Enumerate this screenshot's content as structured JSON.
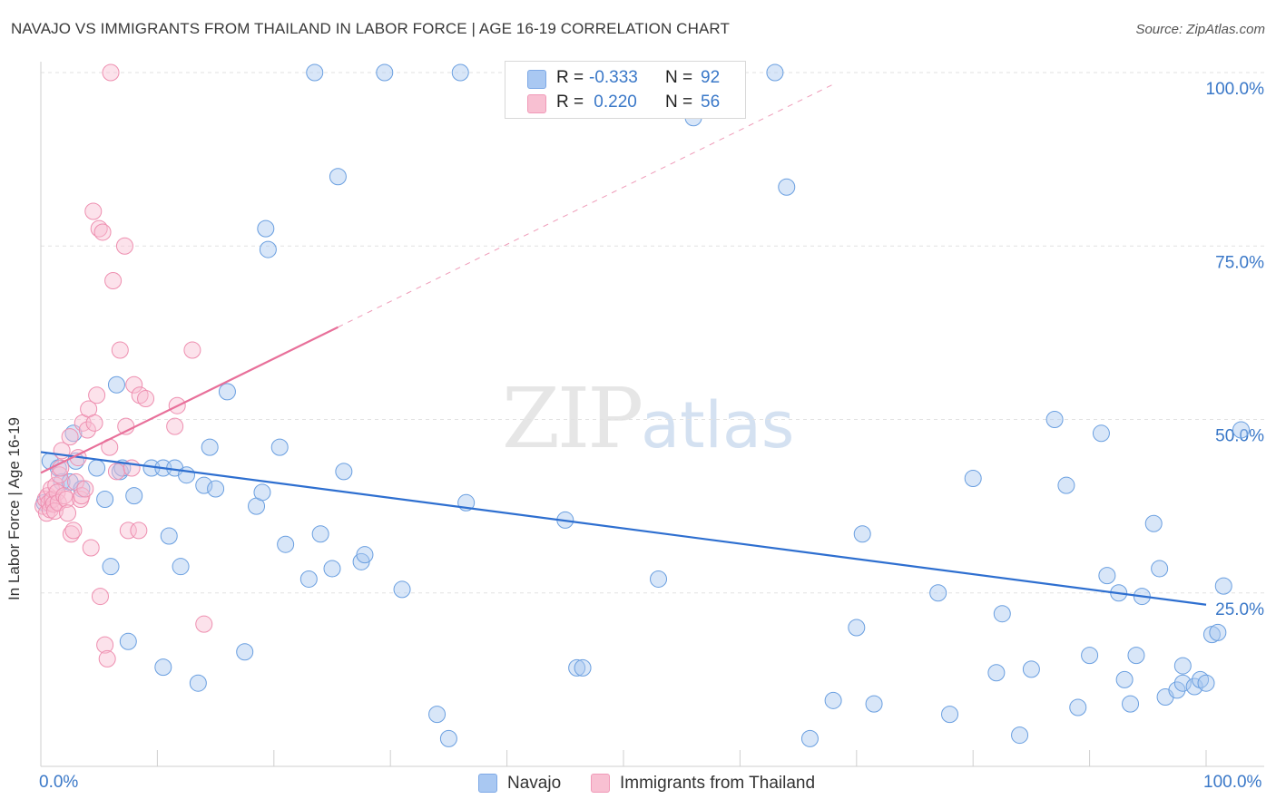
{
  "title": "NAVAJO VS IMMIGRANTS FROM THAILAND IN LABOR FORCE | AGE 16-19 CORRELATION CHART",
  "source": "Source: ZipAtlas.com",
  "watermark": {
    "zip": "ZIP",
    "atlas": "atlas"
  },
  "colors": {
    "blue": "#6a9fe0",
    "blue_fill": "rgba(168,199,240,0.45)",
    "blue_line": "#2e6fd0",
    "pink": "#ee8fb0",
    "pink_fill": "rgba(248,190,210,0.45)",
    "pink_line": "#e8709a",
    "axis_text": "#3a78c8"
  },
  "legend_top": [
    {
      "r_label": "R =",
      "r_value": "-0.333",
      "n_label": "N =",
      "n_value": "92",
      "swatch_color": "#a9c8f2",
      "swatch_border": "#7ea9e6"
    },
    {
      "r_label": "R =",
      "r_value": " 0.220",
      "n_label": "N =",
      "n_value": "56",
      "swatch_color": "#f8c0d2",
      "swatch_border": "#f09ab8"
    }
  ],
  "legend_bottom": [
    {
      "label": "Navajo",
      "swatch_color": "#a9c8f2",
      "swatch_border": "#7ea9e6"
    },
    {
      "label": "Immigrants from Thailand",
      "swatch_color": "#f8c0d2",
      "swatch_border": "#f09ab8"
    }
  ],
  "chart_data": {
    "type": "scatter",
    "title": "NAVAJO VS IMMIGRANTS FROM THAILAND IN LABOR FORCE | AGE 16-19 CORRELATION CHART",
    "xlabel": "",
    "ylabel": "In Labor Force | Age 16-19",
    "xlim": [
      0,
      100
    ],
    "ylim": [
      0,
      100
    ],
    "x_tick_labels": [
      "0.0%",
      "100.0%"
    ],
    "y_ticks": [
      25,
      50,
      75,
      100
    ],
    "y_tick_labels": [
      "25.0%",
      "50.0%",
      "75.0%",
      "100.0%"
    ],
    "grid": true,
    "series": [
      {
        "name": "Navajo",
        "r": -0.333,
        "n": 92,
        "trend": {
          "x": [
            0,
            100
          ],
          "y": [
            45.3,
            23.3
          ],
          "dashed_x_max": null
        },
        "points": [
          [
            0.3,
            38
          ],
          [
            0.8,
            44
          ],
          [
            1.5,
            43
          ],
          [
            1.8,
            41
          ],
          [
            2.5,
            41
          ],
          [
            2.8,
            48
          ],
          [
            3.0,
            44
          ],
          [
            3.5,
            40
          ],
          [
            4.8,
            43
          ],
          [
            5.5,
            38.5
          ],
          [
            6.0,
            28.8
          ],
          [
            6.5,
            55
          ],
          [
            6.8,
            42.5
          ],
          [
            7.0,
            43
          ],
          [
            7.5,
            18
          ],
          [
            8.0,
            39
          ],
          [
            9.5,
            43
          ],
          [
            10.5,
            43
          ],
          [
            10.5,
            14.3
          ],
          [
            11.0,
            33.2
          ],
          [
            11.5,
            43
          ],
          [
            12.0,
            28.8
          ],
          [
            12.5,
            42
          ],
          [
            13.5,
            12
          ],
          [
            14,
            40.5
          ],
          [
            14.5,
            46
          ],
          [
            15,
            40
          ],
          [
            16,
            54
          ],
          [
            17.5,
            16.5
          ],
          [
            18.5,
            37.5
          ],
          [
            19,
            39.5
          ],
          [
            19.3,
            77.5
          ],
          [
            19.5,
            74.5
          ],
          [
            20.5,
            46
          ],
          [
            21,
            32
          ],
          [
            23,
            27
          ],
          [
            23.5,
            100
          ],
          [
            24,
            33.5
          ],
          [
            25,
            28.5
          ],
          [
            25.5,
            85
          ],
          [
            26,
            42.5
          ],
          [
            27.5,
            29.5
          ],
          [
            27.8,
            30.5
          ],
          [
            29.5,
            100
          ],
          [
            31,
            25.5
          ],
          [
            34,
            7.5
          ],
          [
            35,
            4
          ],
          [
            36,
            100
          ],
          [
            36.5,
            38
          ],
          [
            45,
            35.5
          ],
          [
            46,
            14.2
          ],
          [
            46.5,
            14.2
          ],
          [
            53,
            27
          ],
          [
            56,
            93.5
          ],
          [
            63,
            100
          ],
          [
            64,
            83.5
          ],
          [
            66,
            4
          ],
          [
            68,
            9.5
          ],
          [
            70,
            20
          ],
          [
            70.5,
            33.5
          ],
          [
            71.5,
            9
          ],
          [
            77,
            25
          ],
          [
            78,
            7.5
          ],
          [
            80,
            41.5
          ],
          [
            82,
            13.5
          ],
          [
            82.5,
            22
          ],
          [
            84,
            4.5
          ],
          [
            85,
            14
          ],
          [
            87,
            50
          ],
          [
            88,
            40.5
          ],
          [
            89,
            8.5
          ],
          [
            90,
            16
          ],
          [
            91,
            48
          ],
          [
            91.5,
            27.5
          ],
          [
            92.5,
            25
          ],
          [
            93,
            12.5
          ],
          [
            93.5,
            9
          ],
          [
            94,
            16
          ],
          [
            94.5,
            24.5
          ],
          [
            95.5,
            35
          ],
          [
            96,
            28.5
          ],
          [
            96.5,
            10
          ],
          [
            97.5,
            11
          ],
          [
            98,
            14.5
          ],
          [
            98,
            12
          ],
          [
            99,
            11.5
          ],
          [
            99.5,
            12.5
          ],
          [
            100,
            12
          ],
          [
            100.5,
            19
          ],
          [
            101,
            19.3
          ],
          [
            101.5,
            26
          ],
          [
            103,
            48.5
          ]
        ]
      },
      {
        "name": "Immigrants from Thailand",
        "r": 0.22,
        "n": 56,
        "trend": {
          "x": [
            0,
            25.5
          ],
          "y": [
            42.3,
            63.3
          ],
          "dashed_x_max": 68
        },
        "points": [
          [
            0.2,
            37.5
          ],
          [
            0.4,
            38.5
          ],
          [
            0.5,
            36.5
          ],
          [
            0.6,
            39
          ],
          [
            0.7,
            38
          ],
          [
            0.8,
            37
          ],
          [
            0.9,
            40
          ],
          [
            1.0,
            38.5
          ],
          [
            1.1,
            37.8
          ],
          [
            1.2,
            36.8
          ],
          [
            1.3,
            40.5
          ],
          [
            1.4,
            39.5
          ],
          [
            1.5,
            38
          ],
          [
            1.6,
            42
          ],
          [
            1.7,
            43
          ],
          [
            1.8,
            45.5
          ],
          [
            2.0,
            39
          ],
          [
            2.2,
            38.5
          ],
          [
            2.3,
            36.5
          ],
          [
            2.5,
            47.5
          ],
          [
            2.6,
            33.5
          ],
          [
            2.8,
            34
          ],
          [
            3.0,
            41
          ],
          [
            3.2,
            44.5
          ],
          [
            3.4,
            38.5
          ],
          [
            3.5,
            39
          ],
          [
            3.6,
            49.5
          ],
          [
            3.8,
            40
          ],
          [
            4.0,
            48.5
          ],
          [
            4.1,
            51.5
          ],
          [
            4.3,
            31.5
          ],
          [
            4.5,
            80
          ],
          [
            4.6,
            49.5
          ],
          [
            4.8,
            53.5
          ],
          [
            5.0,
            77.5
          ],
          [
            5.1,
            24.5
          ],
          [
            5.3,
            77
          ],
          [
            5.5,
            17.5
          ],
          [
            5.7,
            15.5
          ],
          [
            5.9,
            46
          ],
          [
            6.0,
            100
          ],
          [
            6.2,
            70
          ],
          [
            6.5,
            42.5
          ],
          [
            6.8,
            60
          ],
          [
            7.2,
            75
          ],
          [
            7.3,
            49
          ],
          [
            7.5,
            34
          ],
          [
            7.8,
            43
          ],
          [
            8.0,
            55
          ],
          [
            8.4,
            34
          ],
          [
            8.5,
            53.5
          ],
          [
            9.0,
            53
          ],
          [
            11.5,
            49
          ],
          [
            11.7,
            52
          ],
          [
            13,
            60
          ],
          [
            14,
            20.5
          ]
        ]
      }
    ]
  }
}
